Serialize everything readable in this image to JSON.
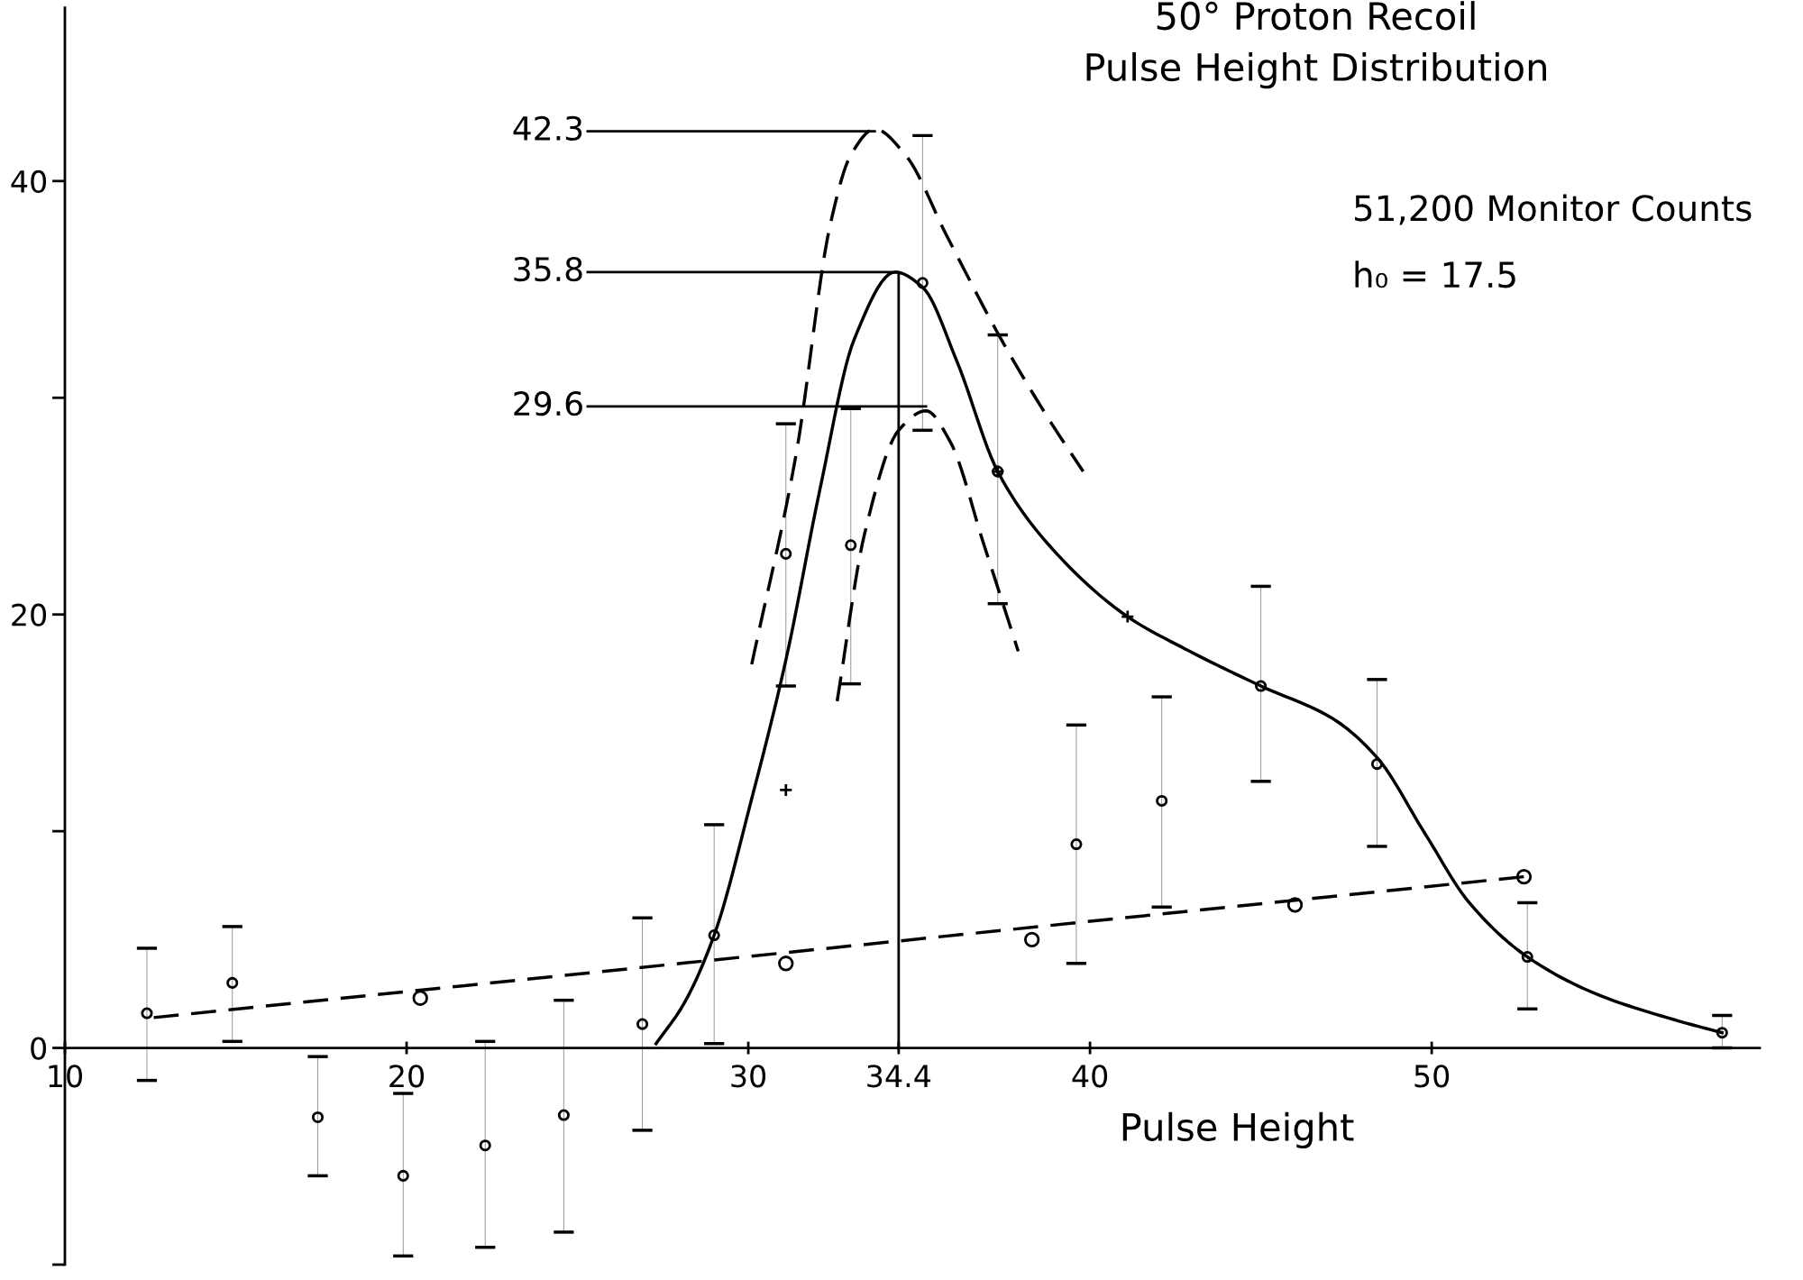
{
  "chart_data": {
    "type": "scatter",
    "title": "50° Proton Recoil",
    "subtitle": "Pulse Height Distribution",
    "xlabel": "Pulse Height",
    "xlim": [
      10,
      59.6
    ],
    "ylim": [
      -10,
      48
    ],
    "xticks": [
      {
        "value": 10,
        "label": "10"
      },
      20,
      30,
      {
        "value": 34.4,
        "label": "34.4"
      },
      40,
      50
    ],
    "yticks": [
      {
        "value": -10,
        "label": null
      },
      0,
      {
        "value": 10,
        "label": null
      },
      20,
      {
        "value": 30,
        "label": null
      },
      40
    ],
    "grid": false,
    "series": [
      {
        "marker": "circle",
        "color": "#000000",
        "x": [
          12.4,
          14.9,
          17.4,
          19.9,
          22.3,
          24.6,
          26.9,
          29.0,
          31.1,
          33.0,
          35.1,
          37.3,
          39.6,
          42.1,
          45.0,
          48.4,
          52.8,
          58.5
        ],
        "values": [
          1.6,
          3.0,
          -3.2,
          -5.9,
          -4.5,
          -3.1,
          1.1,
          5.2,
          22.8,
          23.2,
          35.3,
          26.6,
          9.4,
          11.4,
          16.7,
          13.1,
          4.2,
          0.7
        ],
        "errors": [
          [
            -1.5,
            4.6
          ],
          [
            0.3,
            5.6
          ],
          [
            -5.9,
            -0.4
          ],
          [
            -9.6,
            -2.1
          ],
          [
            -9.2,
            0.3
          ],
          [
            -8.5,
            2.2
          ],
          [
            -3.8,
            6.0
          ],
          [
            0.2,
            10.3
          ],
          [
            16.7,
            28.8
          ],
          [
            16.8,
            29.5
          ],
          [
            28.5,
            42.1
          ],
          [
            20.5,
            32.9
          ],
          [
            3.9,
            14.9
          ],
          [
            6.5,
            16.2
          ],
          [
            12.3,
            21.3
          ],
          [
            9.3,
            17.0
          ],
          [
            1.8,
            6.7
          ],
          [
            0.0,
            1.5
          ]
        ]
      },
      {
        "marker": "cross",
        "color": "#000000",
        "x": [
          31.1,
          37.3,
          41.1
        ],
        "values": [
          11.9,
          26.6,
          19.9
        ]
      },
      {
        "marker": "circle",
        "color": "#000000",
        "x": [
          20.4,
          31.1,
          38.3,
          46.0,
          52.7
        ],
        "values": [
          2.3,
          3.9,
          5.0,
          6.6,
          7.9
        ]
      },
      {
        "type": "line",
        "line_style": "solid",
        "color": "#000000",
        "x": [
          27.3,
          28.1,
          29.0,
          30.1,
          31.1,
          32.1,
          33.1,
          34.3,
          35.1,
          36.1,
          37.3,
          38.8,
          41.1,
          42.8,
          45.0,
          47.1,
          48.4,
          49.8,
          51.1,
          52.8,
          54.8,
          57.1,
          58.5
        ],
        "values": [
          0.2,
          2.0,
          5.2,
          11.5,
          17.9,
          25.8,
          32.7,
          35.8,
          35.1,
          31.7,
          26.6,
          23.2,
          19.9,
          18.4,
          16.7,
          15.2,
          13.4,
          9.9,
          6.7,
          4.2,
          2.5,
          1.3,
          0.7
        ]
      },
      {
        "type": "line",
        "line_style": "dashed",
        "color": "#000000",
        "x": [
          30.1,
          31.4,
          32.4,
          33.0,
          33.7,
          34.6,
          35.8,
          37.4,
          38.8,
          39.8
        ],
        "values": [
          17.7,
          27.4,
          38.0,
          41.2,
          42.4,
          41.2,
          37.5,
          32.7,
          29.0,
          26.6
        ]
      },
      {
        "type": "line",
        "line_style": "dashed",
        "color": "#000000",
        "x": [
          32.6,
          33.4,
          34.4,
          35.2,
          35.9,
          36.9,
          37.9
        ],
        "values": [
          16.0,
          23.7,
          28.5,
          29.4,
          28.0,
          23.2,
          18.3
        ]
      },
      {
        "type": "line",
        "line_style": "dashed",
        "color": "#000000",
        "x": [
          12.6,
          52.7
        ],
        "values": [
          1.4,
          7.9
        ]
      }
    ],
    "ref_lines": [
      {
        "axis": "x",
        "value": 34.4,
        "color": "#000000"
      }
    ],
    "annotations": [
      {
        "text": "42.3",
        "x": 33.7,
        "y": 42.3
      },
      {
        "text": "35.8",
        "x": 34.3,
        "y": 35.8
      },
      {
        "text": "29.6",
        "x": 35.2,
        "y": 29.6
      },
      "51,200 Monitor Counts",
      "h₀ = 17.5"
    ]
  }
}
